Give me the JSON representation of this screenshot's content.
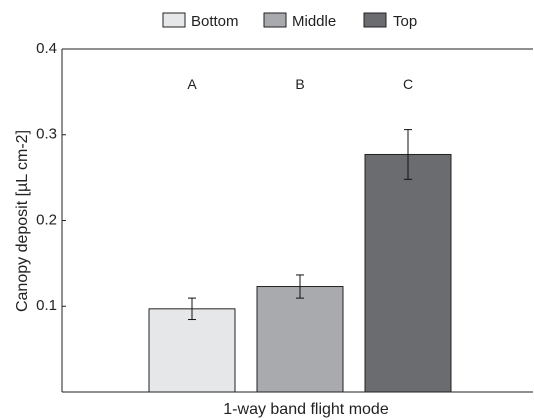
{
  "chart_data": {
    "type": "bar",
    "title": "",
    "xlabel": "1-way band flight mode",
    "ylabel": "Canopy deposit [µL cm-2]",
    "ylim": [
      0,
      0.4
    ],
    "yticks": [
      0.1,
      0.2,
      0.3,
      0.4
    ],
    "ytick_labels": [
      "0.1",
      "0.2",
      "0.3",
      "0.4"
    ],
    "grid": false,
    "legend_position": "top",
    "series": [
      {
        "name": "Bottom",
        "value": 0.097,
        "error": 0.0125,
        "letter": "A",
        "color": "#e6e7e8"
      },
      {
        "name": "Middle",
        "value": 0.123,
        "error": 0.0135,
        "letter": "B",
        "color": "#a9aaad"
      },
      {
        "name": "Top",
        "value": 0.277,
        "error": 0.029,
        "letter": "C",
        "color": "#6b6c70"
      }
    ]
  }
}
